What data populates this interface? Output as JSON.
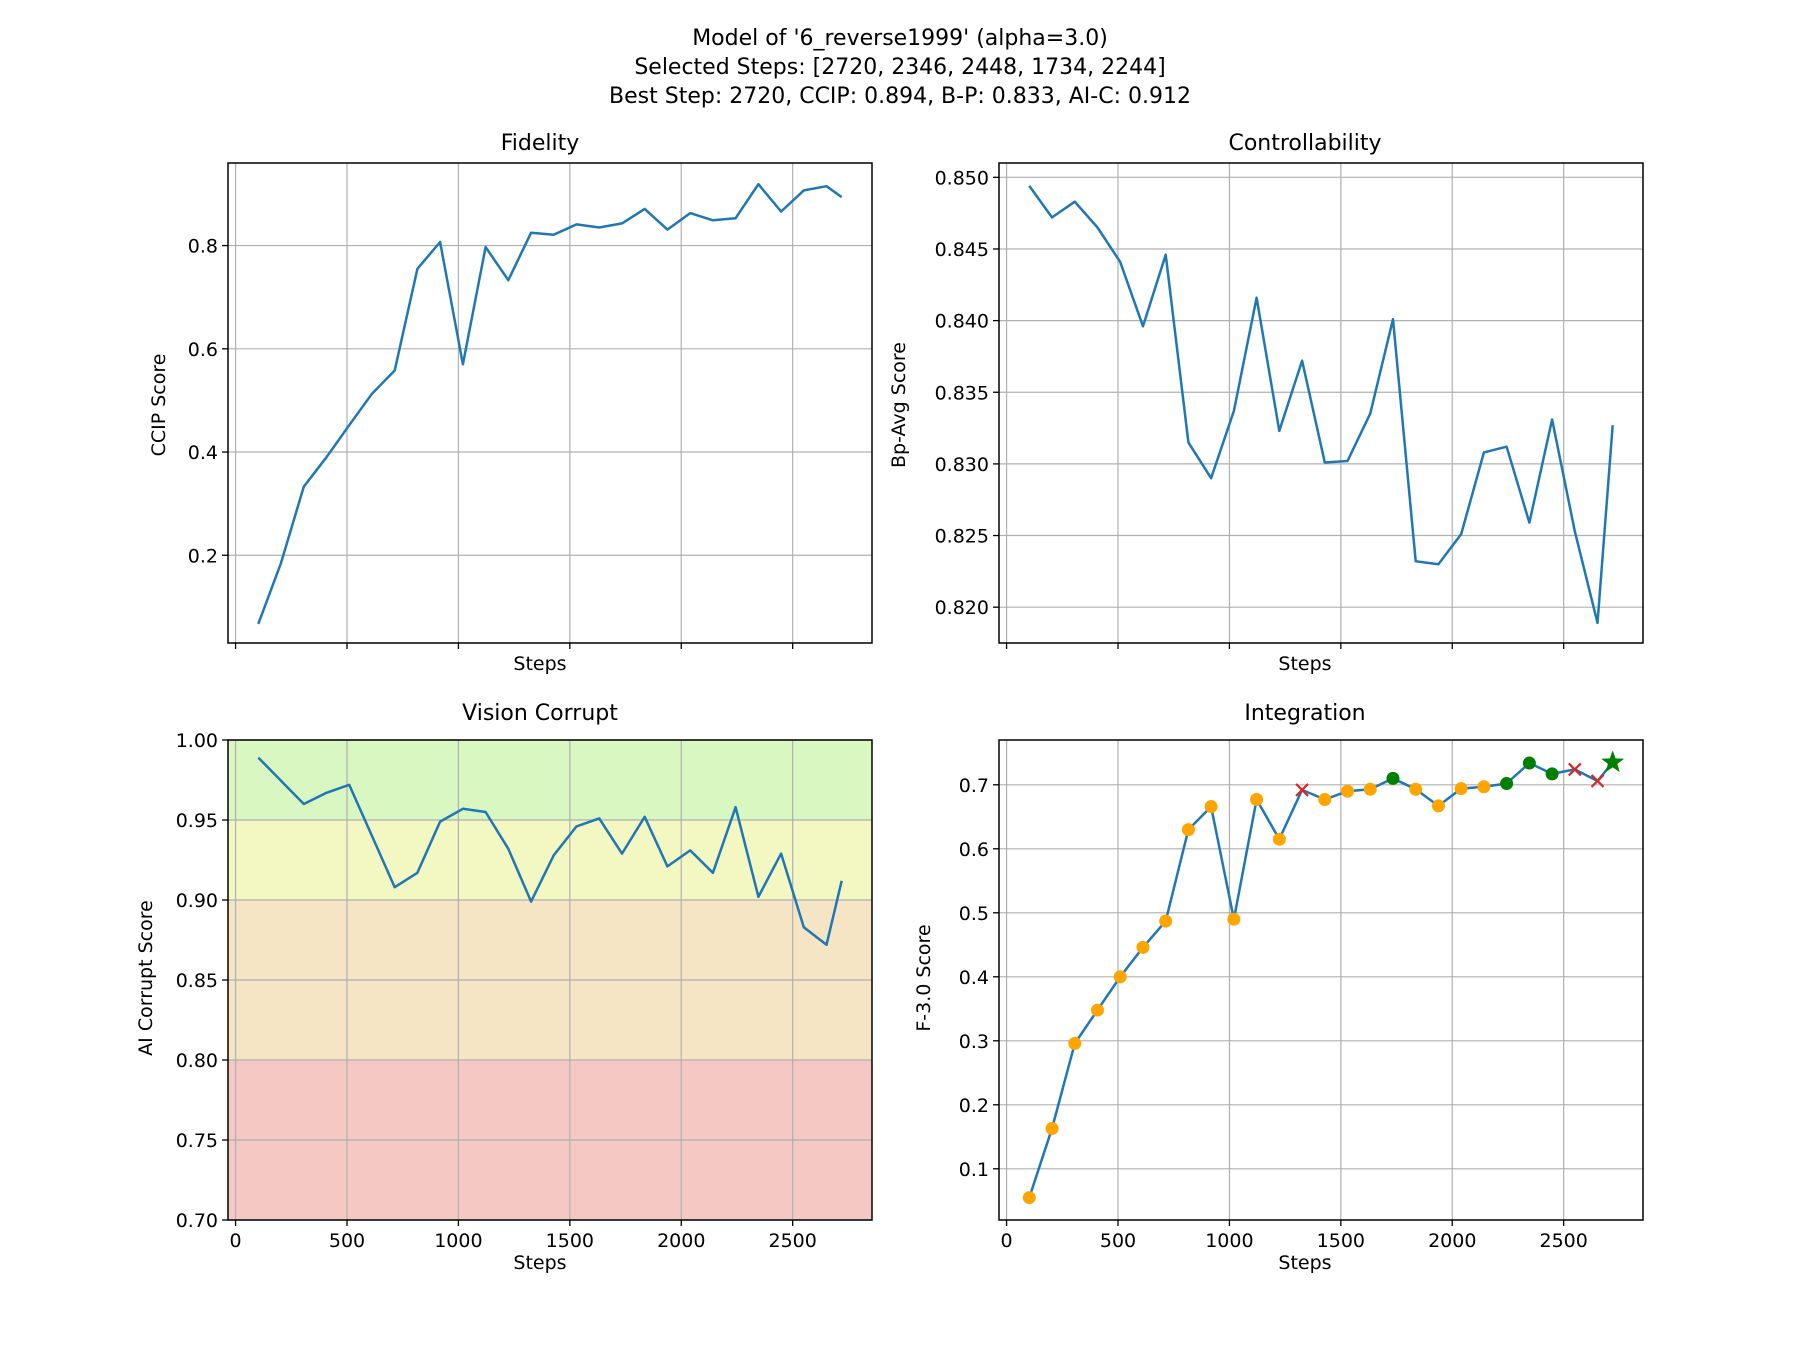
{
  "figure": {
    "title_lines": [
      "Model of '6_reverse1999' (alpha=3.0)",
      "Selected Steps: [2720, 2346, 2448, 1734, 2244]",
      "Best Step: 2720, CCIP: 0.894, B-P: 0.833, AI-C: 0.912"
    ]
  },
  "colors": {
    "line": "#1f77b4",
    "marker_normal": "#ffa500",
    "marker_selected": "#008000",
    "marker_excluded": "#d62728",
    "marker_best": "#008000",
    "band_green": "#d9f7c1",
    "band_yellow": "#f3f7c1",
    "band_orange": "#f5e5c4",
    "band_red": "#f5c8c4",
    "grid": "#b0b0b0"
  },
  "chart_data": [
    {
      "type": "line",
      "title": "Fidelity",
      "xlabel": "Steps",
      "ylabel": "CCIP Score",
      "xlim": [
        -34,
        2856
      ],
      "ylim": [
        0.03,
        0.96
      ],
      "xticks": [
        0,
        500,
        1000,
        1500,
        2000,
        2500
      ],
      "show_xtick_labels": false,
      "yticks": [
        0.2,
        0.4,
        0.6,
        0.8
      ],
      "ytick_labels": [
        "0.2",
        "0.4",
        "0.6",
        "0.8"
      ],
      "grid": true,
      "x": [
        102,
        204,
        306,
        408,
        510,
        612,
        714,
        816,
        918,
        1020,
        1122,
        1224,
        1326,
        1428,
        1530,
        1632,
        1734,
        1836,
        1938,
        2040,
        2142,
        2244,
        2346,
        2448,
        2550,
        2652,
        2720
      ],
      "y": [
        0.067,
        0.185,
        0.333,
        0.39,
        0.452,
        0.513,
        0.558,
        0.755,
        0.807,
        0.57,
        0.797,
        0.733,
        0.825,
        0.821,
        0.841,
        0.835,
        0.843,
        0.871,
        0.831,
        0.863,
        0.849,
        0.853,
        0.919,
        0.866,
        0.907,
        0.915,
        0.894
      ]
    },
    {
      "type": "line",
      "title": "Controllability",
      "xlabel": "Steps",
      "ylabel": "Bp-Avg Score",
      "xlim": [
        -34,
        2856
      ],
      "ylim": [
        0.8175,
        0.851
      ],
      "xticks": [
        0,
        500,
        1000,
        1500,
        2000,
        2500
      ],
      "show_xtick_labels": false,
      "yticks": [
        0.82,
        0.825,
        0.83,
        0.835,
        0.84,
        0.845,
        0.85
      ],
      "ytick_labels": [
        "0.820",
        "0.825",
        "0.830",
        "0.835",
        "0.840",
        "0.845",
        "0.850"
      ],
      "grid": true,
      "x": [
        102,
        204,
        306,
        408,
        510,
        612,
        714,
        816,
        918,
        1020,
        1122,
        1224,
        1326,
        1428,
        1530,
        1632,
        1734,
        1836,
        1938,
        2040,
        2142,
        2244,
        2346,
        2448,
        2550,
        2652,
        2720
      ],
      "y": [
        0.8494,
        0.8472,
        0.8483,
        0.8465,
        0.8441,
        0.8396,
        0.8446,
        0.8315,
        0.829,
        0.8337,
        0.8416,
        0.8323,
        0.8372,
        0.8301,
        0.8302,
        0.8335,
        0.8401,
        0.8232,
        0.823,
        0.8251,
        0.8308,
        0.8312,
        0.8259,
        0.8331,
        0.8253,
        0.8189,
        0.8327
      ]
    },
    {
      "type": "line",
      "title": "Vision Corrupt",
      "xlabel": "Steps",
      "ylabel": "AI Corrupt Score",
      "xlim": [
        -34,
        2856
      ],
      "ylim": [
        0.7,
        1.0
      ],
      "xticks": [
        0,
        500,
        1000,
        1500,
        2000,
        2500
      ],
      "xtick_labels": [
        "0",
        "500",
        "1000",
        "1500",
        "2000",
        "2500"
      ],
      "show_xtick_labels": true,
      "yticks": [
        0.7,
        0.75,
        0.8,
        0.85,
        0.9,
        0.95,
        1.0
      ],
      "ytick_labels": [
        "0.70",
        "0.75",
        "0.80",
        "0.85",
        "0.90",
        "0.95",
        "1.00"
      ],
      "grid": true,
      "bands": [
        {
          "from": 0.95,
          "to": 1.0,
          "color": "#d9f7c1"
        },
        {
          "from": 0.9,
          "to": 0.95,
          "color": "#f3f7c1"
        },
        {
          "from": 0.8,
          "to": 0.9,
          "color": "#f5e5c4"
        },
        {
          "from": 0.7,
          "to": 0.8,
          "color": "#f5c8c4"
        }
      ],
      "x": [
        102,
        306,
        408,
        510,
        612,
        714,
        816,
        918,
        1020,
        1122,
        1224,
        1326,
        1428,
        1530,
        1632,
        1734,
        1836,
        1938,
        2040,
        2142,
        2244,
        2346,
        2448,
        2550,
        2652,
        2720
      ],
      "y": [
        0.989,
        0.96,
        0.967,
        0.972,
        0.94,
        0.908,
        0.917,
        0.949,
        0.957,
        0.955,
        0.932,
        0.899,
        0.928,
        0.946,
        0.951,
        0.929,
        0.952,
        0.921,
        0.931,
        0.917,
        0.958,
        0.902,
        0.929,
        0.883,
        0.872,
        0.912
      ]
    },
    {
      "type": "line",
      "title": "Integration",
      "xlabel": "Steps",
      "ylabel": "F-3.0 Score",
      "xlim": [
        -34,
        2856
      ],
      "ylim": [
        0.02,
        0.77
      ],
      "xticks": [
        0,
        500,
        1000,
        1500,
        2000,
        2500
      ],
      "xtick_labels": [
        "0",
        "500",
        "1000",
        "1500",
        "2000",
        "2500"
      ],
      "show_xtick_labels": true,
      "yticks": [
        0.1,
        0.2,
        0.3,
        0.4,
        0.5,
        0.6,
        0.7
      ],
      "ytick_labels": [
        "0.1",
        "0.2",
        "0.3",
        "0.4",
        "0.5",
        "0.6",
        "0.7"
      ],
      "grid": true,
      "x": [
        102,
        204,
        306,
        408,
        510,
        612,
        714,
        816,
        918,
        1020,
        1122,
        1224,
        1326,
        1428,
        1530,
        1632,
        1734,
        1836,
        1938,
        2040,
        2142,
        2244,
        2346,
        2448,
        2550,
        2652,
        2720
      ],
      "y": [
        0.055,
        0.163,
        0.296,
        0.348,
        0.4,
        0.446,
        0.487,
        0.63,
        0.666,
        0.49,
        0.677,
        0.615,
        0.692,
        0.677,
        0.69,
        0.693,
        0.71,
        0.693,
        0.667,
        0.694,
        0.697,
        0.702,
        0.734,
        0.717,
        0.724,
        0.706,
        0.735
      ],
      "markers": [
        "normal",
        "normal",
        "normal",
        "normal",
        "normal",
        "normal",
        "normal",
        "normal",
        "normal",
        "normal",
        "normal",
        "normal",
        "excluded",
        "normal",
        "normal",
        "normal",
        "selected",
        "normal",
        "normal",
        "normal",
        "normal",
        "selected",
        "selected",
        "selected",
        "excluded",
        "excluded",
        "best"
      ]
    }
  ]
}
